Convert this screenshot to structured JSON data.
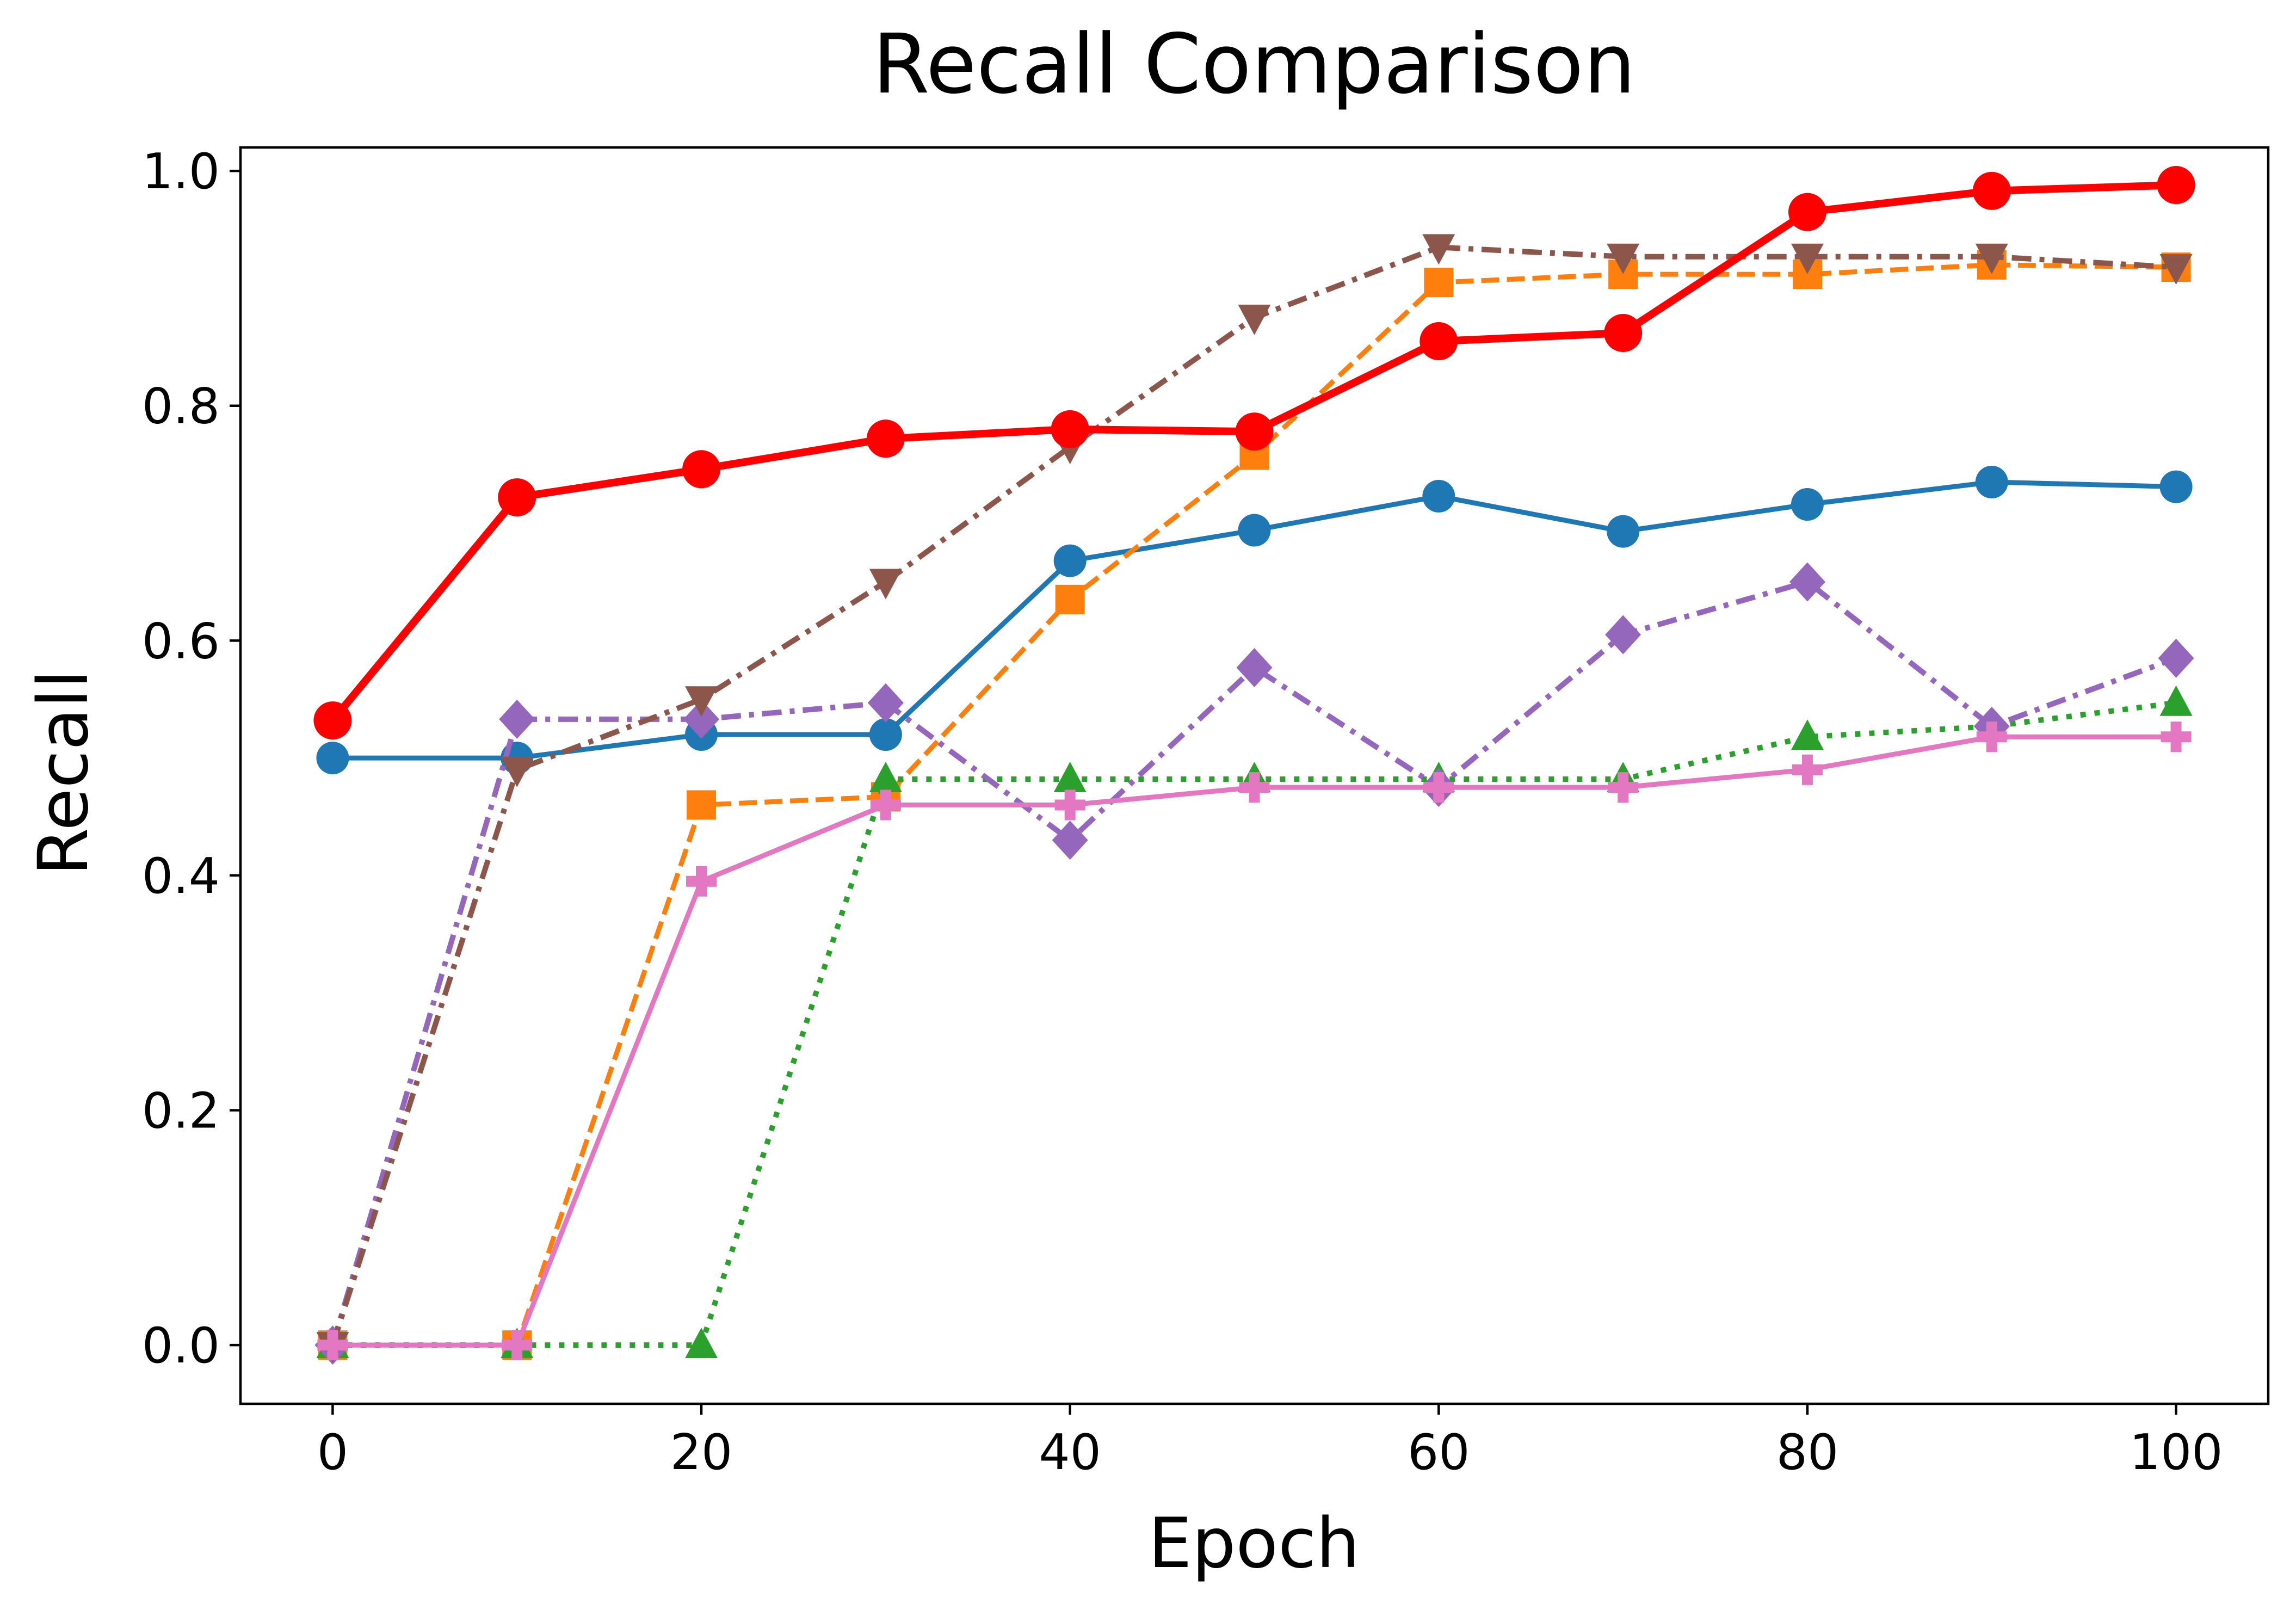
{
  "chart_data": {
    "type": "line",
    "title": "Recall Comparison",
    "xlabel": "Epoch",
    "ylabel": "Recall",
    "xlim": [
      -5,
      105
    ],
    "ylim": [
      -0.05,
      1.02
    ],
    "xticks": [
      0,
      20,
      40,
      60,
      80,
      100
    ],
    "xtick_labels": [
      "0",
      "20",
      "40",
      "60",
      "80",
      "100"
    ],
    "yticks": [
      0.0,
      0.2,
      0.4,
      0.6,
      0.8,
      1.0
    ],
    "ytick_labels": [
      "0.0",
      "0.2",
      "0.4",
      "0.6",
      "0.8",
      "1.0"
    ],
    "grid": false,
    "legend": false,
    "x": [
      0,
      10,
      20,
      30,
      40,
      50,
      60,
      70,
      80,
      90,
      100
    ],
    "series": [
      {
        "color": "#1f77b4",
        "marker": "circle",
        "line_style": "solid",
        "values": [
          0.5,
          0.5,
          0.52,
          0.52,
          0.668,
          0.694,
          0.723,
          0.693,
          0.716,
          0.735,
          0.731
        ]
      },
      {
        "color": "#ff7f0e",
        "marker": "square",
        "line_style": "dashed",
        "values": [
          0.0,
          0.0,
          0.46,
          0.467,
          0.635,
          0.758,
          0.905,
          0.912,
          0.912,
          0.92,
          0.918
        ]
      },
      {
        "color": "#2ca02c",
        "marker": "triangle-up",
        "line_style": "dotted",
        "values": [
          0.0,
          0.0,
          0.0,
          0.482,
          0.482,
          0.482,
          0.482,
          0.482,
          0.518,
          0.527,
          0.547
        ]
      },
      {
        "color": "#9467bd",
        "marker": "diamond",
        "line_style": "dashdot",
        "values": [
          0.0,
          0.533,
          0.533,
          0.547,
          0.43,
          0.577,
          0.475,
          0.605,
          0.65,
          0.527,
          0.585
        ]
      },
      {
        "color": "#8c564b",
        "marker": "triangle-down",
        "line_style": "dashdot",
        "values": [
          0.0,
          0.49,
          0.55,
          0.65,
          0.765,
          0.875,
          0.935,
          0.927,
          0.927,
          0.927,
          0.918
        ]
      },
      {
        "color": "#e377c2",
        "marker": "plus-filled",
        "line_style": "solid",
        "values": [
          0.0,
          0.0,
          0.395,
          0.46,
          0.46,
          0.475,
          0.475,
          0.475,
          0.49,
          0.518,
          0.518
        ]
      },
      {
        "color": "#ff0000",
        "marker": "circle-large",
        "line_style": "solid-thick",
        "values": [
          0.532,
          0.722,
          0.746,
          0.772,
          0.78,
          0.778,
          0.855,
          0.862,
          0.965,
          0.983,
          0.988
        ]
      }
    ]
  }
}
